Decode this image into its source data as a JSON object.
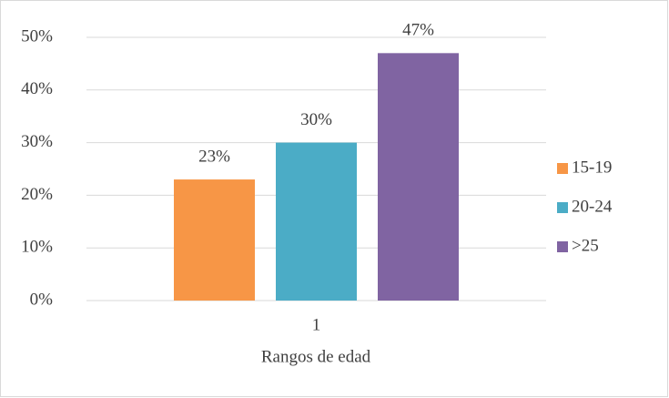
{
  "chart_data": {
    "type": "bar",
    "categories": [
      "1"
    ],
    "x_label": "Rangos de edad",
    "series": [
      {
        "name": "15-19",
        "color": "#f79646",
        "values": [
          23
        ],
        "value_labels": [
          "23%"
        ]
      },
      {
        "name": "20-24",
        "color": "#4bacc6",
        "values": [
          30
        ],
        "value_labels": [
          "30%"
        ]
      },
      {
        "name": ">25",
        "color": "#8064a2",
        "values": [
          47
        ],
        "value_labels": [
          "47%"
        ]
      }
    ],
    "ylim": [
      0,
      50
    ],
    "yticks": [
      {
        "value": 0,
        "label": "0%"
      },
      {
        "value": 10,
        "label": "10%"
      },
      {
        "value": 20,
        "label": "20%"
      },
      {
        "value": 30,
        "label": "30%"
      },
      {
        "value": 40,
        "label": "40%"
      },
      {
        "value": 50,
        "label": "50%"
      }
    ],
    "grid": true,
    "legend": "right"
  }
}
